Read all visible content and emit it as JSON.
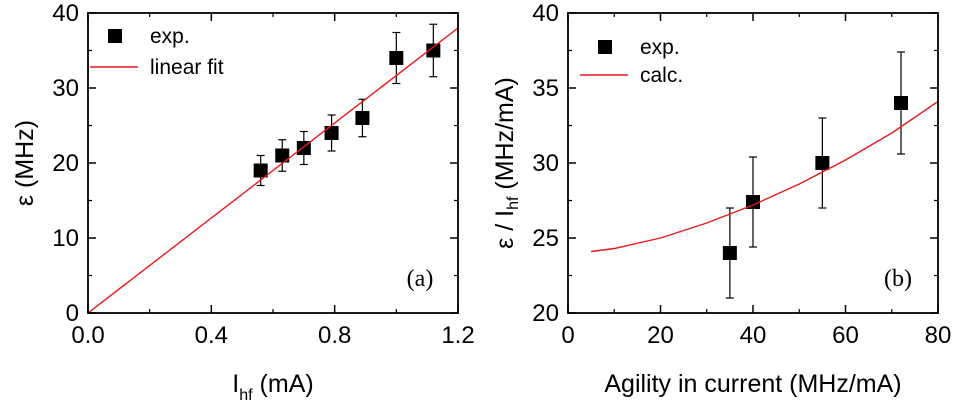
{
  "colors": {
    "axis": "#000000",
    "marker": "#000000",
    "fit_line": "#e8191b",
    "background": "#ffffff"
  },
  "chart_data": [
    {
      "type": "scatter",
      "panel_tag": "(a)",
      "xlabel": {
        "main": "I",
        "sub": "hf",
        "tail": " (mA)"
      },
      "ylabel": {
        "main": "ε (MHz)"
      },
      "xlim": [
        0.0,
        1.2
      ],
      "ylim": [
        0,
        40
      ],
      "xticks": [
        "0.0",
        "0.4",
        "0.8",
        "1.2"
      ],
      "yticks": [
        "0",
        "10",
        "20",
        "30",
        "40"
      ],
      "legend_position": "top-left",
      "series": [
        {
          "name": "exp.",
          "kind": "points",
          "x": [
            0.56,
            0.63,
            0.7,
            0.79,
            0.89,
            1.0,
            1.12
          ],
          "y": [
            19,
            21,
            22,
            24,
            26,
            34,
            35
          ],
          "err": [
            2.0,
            2.1,
            2.2,
            2.4,
            2.5,
            3.4,
            3.5
          ]
        },
        {
          "name": "linear fit",
          "kind": "line",
          "x": [
            0.0,
            1.2
          ],
          "y": [
            0,
            38
          ]
        }
      ]
    },
    {
      "type": "scatter",
      "panel_tag": "(b)",
      "xlabel": {
        "main": "Agility in current (MHz/mA)"
      },
      "ylabel": {
        "main": "ε / I",
        "sub": "hf",
        "tail": " (MHz/mA)"
      },
      "xlim": [
        0,
        80
      ],
      "ylim": [
        20,
        40
      ],
      "xticks": [
        "0",
        "20",
        "40",
        "60",
        "80"
      ],
      "yticks": [
        "20",
        "25",
        "30",
        "35",
        "40"
      ],
      "legend_position": "top-left",
      "series": [
        {
          "name": "exp.",
          "kind": "points",
          "x": [
            35,
            40,
            55,
            72
          ],
          "y": [
            24.0,
            27.4,
            30.0,
            34.0
          ],
          "err": [
            3.0,
            3.0,
            3.0,
            3.4
          ]
        },
        {
          "name": "calc.",
          "kind": "line",
          "x": [
            5,
            10,
            20,
            30,
            40,
            50,
            60,
            70,
            80
          ],
          "y": [
            24.1,
            24.3,
            25.0,
            26.0,
            27.2,
            28.6,
            30.2,
            32.0,
            34.1
          ]
        }
      ]
    }
  ]
}
